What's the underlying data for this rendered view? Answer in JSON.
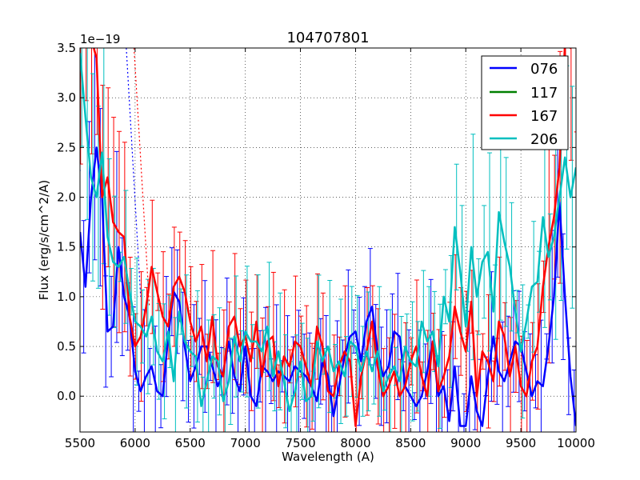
{
  "chart_data": {
    "type": "line",
    "title": "104707801",
    "xlabel": "Wavelength (A)",
    "ylabel": "Flux (erg/s/cm^2/A)",
    "y_offset_label": "1e−19",
    "xlim": [
      5500,
      10000
    ],
    "ylim": [
      -0.36,
      3.5
    ],
    "grid": true,
    "grid_style": "dotted",
    "legend_position": "top-right",
    "x_ticks": [
      5500,
      6000,
      6500,
      7000,
      7500,
      8000,
      8500,
      9000,
      9500,
      10000
    ],
    "x_tick_labels": [
      "5500",
      "6000",
      "6500",
      "7000",
      "7500",
      "8000",
      "8500",
      "9000",
      "9500",
      "10000"
    ],
    "y_ticks": [
      0.0,
      0.5,
      1.0,
      1.5,
      2.0,
      2.5,
      3.0,
      3.5
    ],
    "y_tick_labels": [
      "0.0",
      "0.5",
      "1.0",
      "1.5",
      "2.0",
      "2.5",
      "3.0",
      "3.5"
    ],
    "series": [
      {
        "name": "076",
        "color": "#0000ff",
        "x": [
          5500,
          5550,
          5600,
          5650,
          5700,
          5750,
          5800,
          5850,
          5900,
          5950,
          6000,
          6050,
          6100,
          6150,
          6200,
          6250,
          6300,
          6350,
          6400,
          6450,
          6500,
          6550,
          6600,
          6650,
          6700,
          6750,
          6800,
          6850,
          6900,
          6950,
          7000,
          7050,
          7100,
          7150,
          7200,
          7250,
          7300,
          7350,
          7400,
          7450,
          7500,
          7550,
          7600,
          7650,
          7700,
          7750,
          7800,
          7850,
          7900,
          7950,
          8000,
          8050,
          8100,
          8150,
          8200,
          8250,
          8300,
          8350,
          8400,
          8450,
          8500,
          8550,
          8600,
          8650,
          8700,
          8750,
          8800,
          8850,
          8900,
          8950,
          9000,
          9050,
          9100,
          9150,
          9200,
          9250,
          9300,
          9350,
          9400,
          9450,
          9500,
          9550,
          9600,
          9650,
          9700,
          9750,
          9800,
          9850,
          9900,
          9950,
          10000
        ],
        "values": [
          1.65,
          1.1,
          2.0,
          2.5,
          2.0,
          0.65,
          0.7,
          1.5,
          1.0,
          0.8,
          0.25,
          0.05,
          0.2,
          0.3,
          0.05,
          0.0,
          0.6,
          1.05,
          0.95,
          0.5,
          0.15,
          0.3,
          0.5,
          0.5,
          0.3,
          0.1,
          0.25,
          0.55,
          0.2,
          0.05,
          0.5,
          0.0,
          -0.1,
          0.3,
          0.25,
          0.15,
          0.25,
          0.2,
          0.15,
          0.3,
          0.25,
          0.2,
          0.1,
          -0.05,
          0.35,
          0.2,
          -0.2,
          0.1,
          0.4,
          0.6,
          0.65,
          0.35,
          0.75,
          0.9,
          0.45,
          0.2,
          0.3,
          0.65,
          0.6,
          0.1,
          0.0,
          -0.1,
          0.0,
          0.25,
          0.55,
          0.0,
          0.1,
          -0.25,
          0.3,
          -0.3,
          -0.3,
          0.2,
          -0.15,
          -0.3,
          0.2,
          0.6,
          0.25,
          0.15,
          0.35,
          0.55,
          0.5,
          0.25,
          0.0,
          0.15,
          0.1,
          0.5,
          1.0,
          1.95,
          1.0,
          0.2,
          -0.3
        ]
      },
      {
        "name": "117",
        "color": "#008000",
        "x": [],
        "values": []
      },
      {
        "name": "167",
        "color": "#ff0000",
        "x": [
          5500,
          5550,
          5600,
          5650,
          5700,
          5750,
          5800,
          5850,
          5900,
          5950,
          6000,
          6050,
          6100,
          6150,
          6200,
          6250,
          6300,
          6350,
          6400,
          6450,
          6500,
          6550,
          6600,
          6650,
          6700,
          6750,
          6800,
          6850,
          6900,
          6950,
          7000,
          7050,
          7100,
          7150,
          7200,
          7250,
          7300,
          7350,
          7400,
          7450,
          7500,
          7550,
          7600,
          7650,
          7700,
          7750,
          7800,
          7850,
          7900,
          7950,
          8000,
          8050,
          8100,
          8150,
          8200,
          8250,
          8300,
          8350,
          8400,
          8450,
          8500,
          8550,
          8600,
          8650,
          8700,
          8750,
          8800,
          8850,
          8900,
          8950,
          9000,
          9050,
          9100,
          9150,
          9200,
          9250,
          9300,
          9350,
          9400,
          9450,
          9500,
          9550,
          9600,
          9650,
          9700,
          9750,
          9800,
          9850,
          9900,
          9950,
          10000
        ],
        "values": [
          3.5,
          3.6,
          3.6,
          3.4,
          2.0,
          2.2,
          1.75,
          1.65,
          1.6,
          0.8,
          0.5,
          0.6,
          0.9,
          1.3,
          1.05,
          0.8,
          0.7,
          1.1,
          1.2,
          1.05,
          0.75,
          0.55,
          0.7,
          0.35,
          0.8,
          0.3,
          0.2,
          0.7,
          0.8,
          0.5,
          0.6,
          0.35,
          0.75,
          0.2,
          0.55,
          0.6,
          0.1,
          0.4,
          0.3,
          0.55,
          0.5,
          0.3,
          0.1,
          0.7,
          0.5,
          0.05,
          0.0,
          0.3,
          0.45,
          0.35,
          -0.3,
          0.2,
          0.45,
          0.75,
          0.3,
          0.0,
          0.1,
          0.25,
          0.0,
          0.1,
          0.35,
          0.5,
          0.2,
          0.0,
          0.55,
          0.05,
          0.2,
          0.4,
          0.9,
          0.65,
          0.45,
          0.95,
          0.0,
          0.45,
          0.35,
          0.15,
          0.75,
          0.6,
          0.2,
          0.5,
          0.1,
          0.0,
          0.35,
          0.5,
          1.1,
          1.5,
          1.8,
          2.3,
          3.55,
          3.5,
          3.55
        ]
      },
      {
        "name": "206",
        "color": "#00bfbf",
        "x": [
          5500,
          5550,
          5600,
          5650,
          5700,
          5750,
          5800,
          5850,
          5900,
          5950,
          6000,
          6050,
          6100,
          6150,
          6200,
          6250,
          6300,
          6350,
          6400,
          6450,
          6500,
          6550,
          6600,
          6650,
          6700,
          6750,
          6800,
          6850,
          6900,
          6950,
          7000,
          7050,
          7100,
          7150,
          7200,
          7250,
          7300,
          7350,
          7400,
          7450,
          7500,
          7550,
          7600,
          7650,
          7700,
          7750,
          7800,
          7850,
          7900,
          7950,
          8000,
          8050,
          8100,
          8150,
          8200,
          8250,
          8300,
          8350,
          8400,
          8450,
          8500,
          8550,
          8600,
          8650,
          8700,
          8750,
          8800,
          8850,
          8900,
          8950,
          9000,
          9050,
          9100,
          9150,
          9200,
          9250,
          9300,
          9350,
          9400,
          9450,
          9500,
          9550,
          9600,
          9650,
          9700,
          9750,
          9800,
          9850,
          9900,
          9950,
          10000
        ],
        "values": [
          3.45,
          2.8,
          2.2,
          2.0,
          2.45,
          1.6,
          1.35,
          1.3,
          1.4,
          1.05,
          0.75,
          0.7,
          0.6,
          0.8,
          0.45,
          0.35,
          0.65,
          0.15,
          0.85,
          0.55,
          0.45,
          0.4,
          -0.1,
          0.15,
          0.4,
          0.35,
          -0.05,
          0.15,
          0.6,
          0.35,
          0.65,
          0.55,
          0.55,
          0.45,
          0.7,
          0.2,
          0.45,
          0.15,
          -0.15,
          0.05,
          0.35,
          -0.05,
          0.0,
          0.55,
          0.35,
          0.5,
          0.25,
          0.35,
          0.2,
          0.55,
          0.5,
          0.25,
          0.45,
          0.25,
          0.45,
          0.05,
          0.2,
          0.3,
          0.15,
          0.5,
          0.35,
          0.3,
          0.75,
          0.55,
          0.65,
          0.3,
          1.0,
          0.75,
          1.7,
          1.25,
          0.7,
          1.5,
          1.0,
          1.35,
          1.45,
          0.85,
          1.85,
          1.55,
          1.3,
          0.85,
          0.45,
          0.75,
          1.1,
          1.15,
          1.8,
          1.4,
          1.6,
          2.0,
          2.4,
          2.0,
          2.3
        ]
      }
    ],
    "dotted_extensions": [
      {
        "name": "076",
        "color": "#0000ff",
        "x": [
          5920,
          6050
        ],
        "values": [
          3.5,
          1.0
        ]
      },
      {
        "name": "167",
        "color": "#ff0000",
        "x": [
          5990,
          6130
        ],
        "values": [
          3.5,
          0.9
        ]
      }
    ]
  }
}
